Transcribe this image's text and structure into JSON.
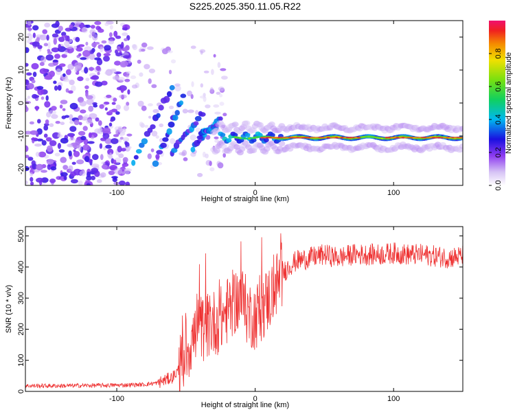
{
  "title": "S225.2025.350.11.05.R22",
  "colors": {
    "snr_line": "#ee3030",
    "axis": "#000000",
    "background": "#ffffff"
  },
  "chart_data": [
    {
      "type": "heatmap",
      "name": "spectrogram",
      "xlabel": "Height of straight line (km)",
      "ylabel": "Frequency (Hz)",
      "xlim": [
        -166,
        150
      ],
      "ylim": [
        -25,
        25
      ],
      "xticks": [
        -100,
        0,
        100
      ],
      "xtick_labels": [
        "-100",
        "0",
        "100"
      ],
      "yticks": [
        -20,
        -10,
        0,
        10,
        20
      ],
      "ytick_labels": [
        "-20",
        "-10",
        "0",
        "10",
        "20"
      ],
      "ridge": {
        "description": "strong ridge near -10 Hz from about -20 km to 150 km",
        "x_start": -20,
        "x_end": 150,
        "frequency": -10.5,
        "peak_amplitude": 0.95
      },
      "colorbar": {
        "label": "Normalized spectral amplitude",
        "range": [
          0,
          1
        ],
        "ticks": [
          0.0,
          0.2,
          0.4,
          0.6,
          0.8
        ],
        "tick_labels": [
          "0.0",
          "0.2",
          "0.4",
          "0.6",
          "0.8"
        ]
      }
    },
    {
      "type": "line",
      "name": "snr",
      "xlabel": "Height of straight line (km)",
      "ylabel": "SNR (10 * v/v)",
      "xlim": [
        -166,
        150
      ],
      "ylim": [
        0,
        530
      ],
      "xticks": [
        -100,
        0,
        100
      ],
      "xtick_labels": [
        "-100",
        "0",
        "100"
      ],
      "yticks": [
        0,
        100,
        200,
        300,
        400,
        500
      ],
      "ytick_labels": [
        "0",
        "100",
        "200",
        "300",
        "400",
        "500"
      ],
      "series": [
        {
          "name": "SNR",
          "x": [
            -166,
            -140,
            -120,
            -100,
            -80,
            -70,
            -60,
            -55,
            -50,
            -45,
            -40,
            -35,
            -30,
            -25,
            -20,
            -15,
            -10,
            -5,
            0,
            5,
            10,
            15,
            20,
            25,
            30,
            40,
            50,
            60,
            70,
            80,
            90,
            100,
            110,
            120,
            130,
            140,
            150
          ],
          "values": [
            18,
            18,
            19,
            20,
            22,
            28,
            45,
            70,
            130,
            170,
            200,
            210,
            220,
            230,
            260,
            290,
            300,
            250,
            240,
            270,
            300,
            340,
            380,
            405,
            420,
            430,
            440,
            430,
            440,
            440,
            440,
            445,
            440,
            440,
            435,
            430,
            435
          ]
        }
      ]
    }
  ]
}
